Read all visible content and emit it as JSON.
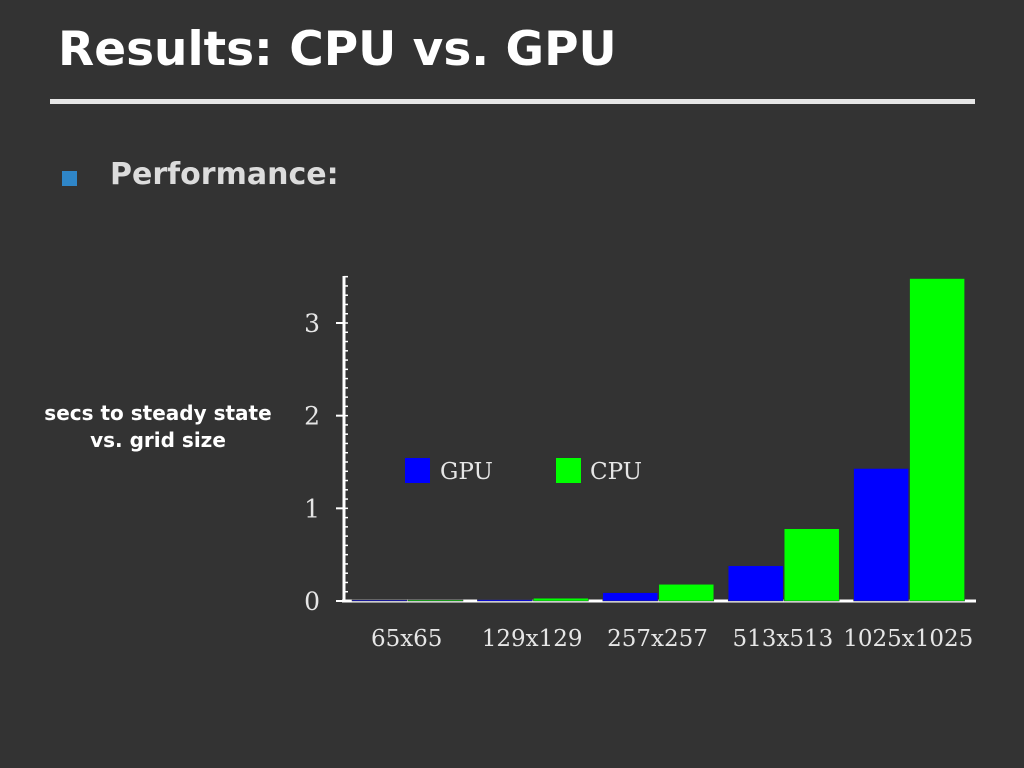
{
  "slide": {
    "title": "Results: CPU vs. GPU",
    "bullet": {
      "text": "Performance:",
      "color": "#2f86c8"
    },
    "side_label": {
      "line1": "secs to steady state",
      "line2": "vs. grid size"
    }
  },
  "chart_data": {
    "type": "bar",
    "title": "",
    "xlabel": "",
    "ylabel": "",
    "categories": [
      "65x65",
      "129x129",
      "257x257",
      "513x513",
      "1025x1025"
    ],
    "series": [
      {
        "name": "GPU",
        "color": "#0000ff",
        "values": [
          0.003,
          0.015,
          0.09,
          0.38,
          1.43
        ]
      },
      {
        "name": "CPU",
        "color": "#00ff00",
        "values": [
          0.005,
          0.03,
          0.18,
          0.78,
          3.48
        ]
      }
    ],
    "ylim": [
      0,
      3.5
    ],
    "yticks": [
      0,
      1,
      2,
      3
    ],
    "legend_position": "center",
    "grid": false
  }
}
